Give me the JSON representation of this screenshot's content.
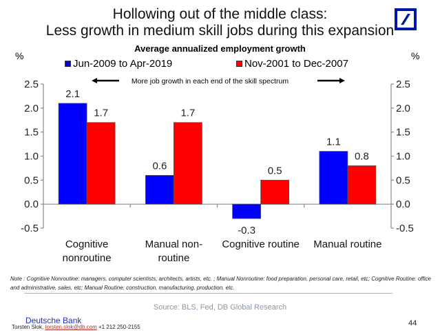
{
  "slide": {
    "title_line1": "Hollowing out of the middle class:",
    "title_line2": "Less growth in medium skill jobs during this expansion",
    "logo": "deutsche-bank-logo",
    "note": "Note : Cognitive Nonroutine: managers, computer scientists, architects, artists, etc. ; Manual Nonroutine: food preparation, personal care, retail, etc; Cognitive Routine: office and administrative, sales, etc; Manual Routine: construction, manufacturing, production, etc.",
    "source": "Source: BLS, Fed, DB Global Research",
    "company": "Deutsche Bank",
    "author": "Torsten Slok, ",
    "email": "torsten.slok@db.com",
    "phone": " +1 212 250-2155",
    "page_number": "44"
  },
  "chart_data": {
    "type": "bar",
    "title": "Average annualized employment growth",
    "ylabel_left": "%",
    "ylabel_right": "%",
    "annotation": "More job growth in each end of the skill spectrum",
    "categories": [
      "Cognitive nonroutine",
      "Manual non-routine",
      "Cognitive routine",
      "Manual routine"
    ],
    "category_labels": [
      [
        "Cognitive",
        "nonroutine"
      ],
      [
        "Manual non-",
        "routine"
      ],
      [
        "Cognitive routine"
      ],
      [
        "Manual routine"
      ]
    ],
    "series": [
      {
        "name": "Jun-2009 to Apr-2019",
        "color": "#0000ff",
        "values": [
          2.1,
          0.6,
          -0.3,
          1.1
        ]
      },
      {
        "name": "Nov-2001 to Dec-2007",
        "color": "#ff0000",
        "values": [
          1.7,
          1.7,
          0.5,
          0.8
        ]
      }
    ],
    "ylim": [
      -0.5,
      2.5
    ],
    "yticks": [
      "2.5",
      "2.0",
      "1.5",
      "1.0",
      "0.5",
      "0.0",
      "-0.5"
    ],
    "ytick_values": [
      2.5,
      2.0,
      1.5,
      1.0,
      0.5,
      0.0,
      -0.5
    ],
    "legend_position": "top",
    "grid": false
  }
}
